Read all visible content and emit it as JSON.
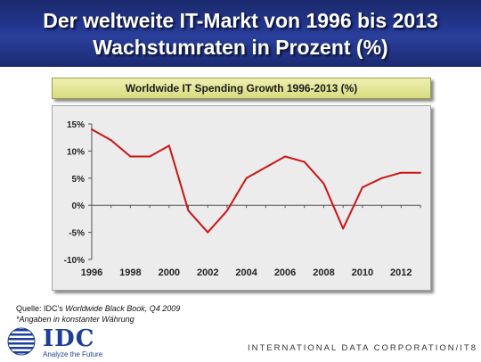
{
  "header": {
    "line1": "Der weltweite IT-Markt von 1996 bis 2013",
    "line2": "Wachstumraten in Prozent (%)"
  },
  "chart_data": {
    "type": "line",
    "title": "Worldwide IT Spending Growth 1996-2013 (%)",
    "xlabel": "",
    "ylabel": "",
    "x": [
      1996,
      1997,
      1998,
      1999,
      2000,
      2001,
      2002,
      2003,
      2004,
      2005,
      2006,
      2007,
      2008,
      2009,
      2010,
      2011,
      2012,
      2013
    ],
    "series": [
      {
        "values": [
          14,
          12,
          9,
          9,
          11,
          -1,
          -5,
          -1,
          5,
          7,
          9,
          8,
          4,
          -4.3,
          3.3,
          5,
          6,
          6
        ]
      }
    ],
    "xlim": [
      1996,
      2013
    ],
    "ylim": [
      -10,
      15
    ],
    "y_ticks": [
      15,
      10,
      5,
      0,
      -5,
      -10
    ],
    "y_tick_labels": [
      "15%",
      "10%",
      "5%",
      "0%",
      "-5%",
      "-10%"
    ],
    "x_ticks": [
      1996,
      1998,
      2000,
      2002,
      2004,
      2006,
      2008,
      2010,
      2012
    ],
    "x_tick_labels": [
      "1996",
      "1998",
      "2000",
      "2002",
      "2004",
      "2006",
      "2008",
      "2010",
      "2012"
    ],
    "line_color": "#cc1414",
    "grid": false,
    "legend": "none"
  },
  "footer": {
    "source_prefix": "Quelle: IDC's ",
    "source_book": "Worldwide Black Book, Q4 2009",
    "note": "*Angaben in konstanter Währung",
    "logo_text": "IDC",
    "logo_tagline": "Analyze the Future",
    "company": "INTERNATIONAL DATA CORPORATION/IT8"
  },
  "colors": {
    "header_bg": "#22348a",
    "title_bar_bg": "#d7dc80",
    "panel_bg": "#ececec",
    "brand": "#1d3f99"
  }
}
